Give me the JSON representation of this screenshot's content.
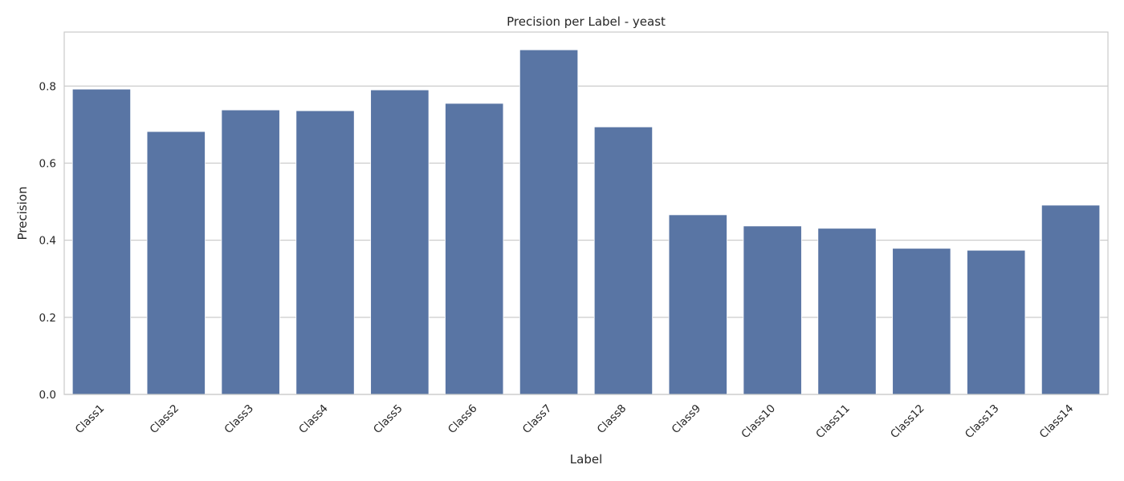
{
  "chart_data": {
    "type": "bar",
    "title": "Precision per Label - yeast",
    "xlabel": "Label",
    "ylabel": "Precision",
    "categories": [
      "Class1",
      "Class2",
      "Class3",
      "Class4",
      "Class5",
      "Class6",
      "Class7",
      "Class8",
      "Class9",
      "Class10",
      "Class11",
      "Class12",
      "Class13",
      "Class14"
    ],
    "values": [
      0.792,
      0.682,
      0.738,
      0.736,
      0.79,
      0.755,
      0.894,
      0.694,
      0.466,
      0.437,
      0.431,
      0.379,
      0.374,
      0.491
    ],
    "ylim": [
      0,
      0.94
    ],
    "yticks": [
      0.0,
      0.2,
      0.4,
      0.6,
      0.8
    ],
    "grid": true,
    "bar_color": "#5975a4",
    "grid_color": "#cccccc"
  }
}
